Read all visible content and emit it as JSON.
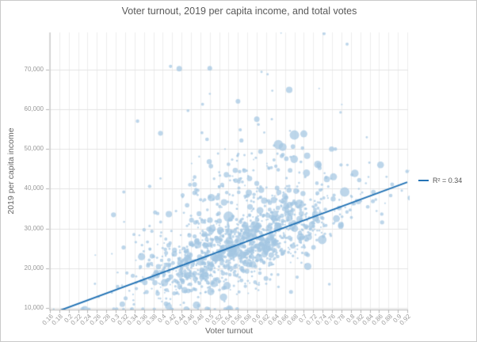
{
  "colors": {
    "background": "#ffffff",
    "panel_border": "#c9c9c9",
    "title_color": "#595959",
    "axis_label_color": "#666666",
    "tick_label_color": "#999999",
    "grid_vertical": "#ececec",
    "grid_horizontal": "#e3e3e3",
    "axis_line": "#b5b5b5",
    "point_fill": "rgba(163,198,226,0.72)",
    "trend_blue": "#2373b5"
  },
  "chart_data": {
    "type": "scatter",
    "title": "Voter turnout, 2019 per capita income, and total votes",
    "xlabel": "Voter turnout",
    "ylabel": "2019 per capita income",
    "xlim": [
      0.16,
      0.9217
    ],
    "ylim": [
      9600,
      79320
    ],
    "grid": true,
    "bubble_size_meaning": "total votes",
    "x_tick_values": [
      0.16,
      0.18,
      0.2,
      0.22,
      0.24,
      0.26,
      0.28,
      0.3,
      0.32,
      0.34,
      0.36,
      0.38,
      0.4,
      0.42,
      0.44,
      0.46,
      0.48,
      0.5,
      0.52,
      0.54,
      0.56,
      0.58,
      0.6,
      0.62,
      0.64,
      0.66,
      0.68,
      0.7,
      0.72,
      0.74,
      0.76,
      0.78,
      0.8,
      0.82,
      0.84,
      0.86,
      0.88,
      0.9,
      0.92
    ],
    "x_tick_labels": [
      "0.16",
      "0.18",
      "0.2",
      "0.22",
      "0.24",
      "0.26",
      "0.28",
      "0.3",
      "0.32",
      "0.34",
      "0.36",
      "0.38",
      "0.4",
      "0.42",
      "0.44",
      "0.46",
      "0.48",
      "0.5",
      "0.52",
      "0.54",
      "0.56",
      "0.58",
      "0.6",
      "0.62",
      "0.64",
      "0.66",
      "0.68",
      "0.7",
      "0.72",
      "0.74",
      "0.76",
      "0.78",
      "0.8",
      "0.82",
      "0.84",
      "0.86",
      "0.88",
      "0.9",
      "0.92"
    ],
    "y_tick_values": [
      10000,
      20000,
      30000,
      40000,
      50000,
      60000,
      70000
    ],
    "y_tick_labels": [
      "10,000",
      "20,000",
      "30,000",
      "40,000",
      "50,000",
      "60,000",
      "70,000"
    ],
    "trendline": {
      "x_start": 0.182,
      "y_start": 9400,
      "x_end": 0.92,
      "y_end": 41650,
      "color": "#2373b5",
      "width": 2
    },
    "legend": {
      "label": "R² = 0.34",
      "position": "right-of-trendline-end",
      "color": "#2373b5"
    },
    "point_cloud": {
      "seed": 7,
      "n": 1450,
      "turnout_mean": 0.565,
      "turnout_sd": 0.105,
      "turnout_min": 0.168,
      "turnout_max": 0.926,
      "trend_intercept": 1447,
      "trend_slope": 43700,
      "core_sd": 4300,
      "upper_sd": 10500,
      "far_sd": 14000,
      "lower_sd": 7500,
      "mix_lower": 0.06,
      "mix_upper": 0.16,
      "mix_far": 0.05,
      "income_min": 9700,
      "income_max": 79200,
      "radius_tiers": [
        [
          0.52,
          1.0,
          0.7
        ],
        [
          0.82,
          1.7,
          0.9
        ],
        [
          0.94,
          2.6,
          1.1
        ],
        [
          0.99,
          3.7,
          1.2
        ],
        [
          1.01,
          4.9,
          1.4
        ]
      ]
    },
    "notable_points": [
      [
        0.54,
        33000,
        6.5
      ],
      [
        0.68,
        53500,
        6.0
      ],
      [
        0.7,
        53800,
        4.5
      ],
      [
        0.655,
        50500,
        5.0
      ],
      [
        0.707,
        48300,
        4.0
      ],
      [
        0.763,
        43000,
        4.5
      ],
      [
        0.583,
        39000,
        4.0
      ],
      [
        0.6,
        57500,
        3.5
      ],
      [
        0.435,
        70200,
        3.5
      ],
      [
        0.5,
        70300,
        3.0
      ],
      [
        0.56,
        62000,
        3.0
      ],
      [
        0.505,
        30000,
        4.5
      ],
      [
        0.743,
        79000,
        2.0
      ],
      [
        0.792,
        76400,
        2.0
      ],
      [
        0.61,
        69400,
        1.5
      ],
      [
        0.623,
        68800,
        1.5
      ]
    ]
  }
}
